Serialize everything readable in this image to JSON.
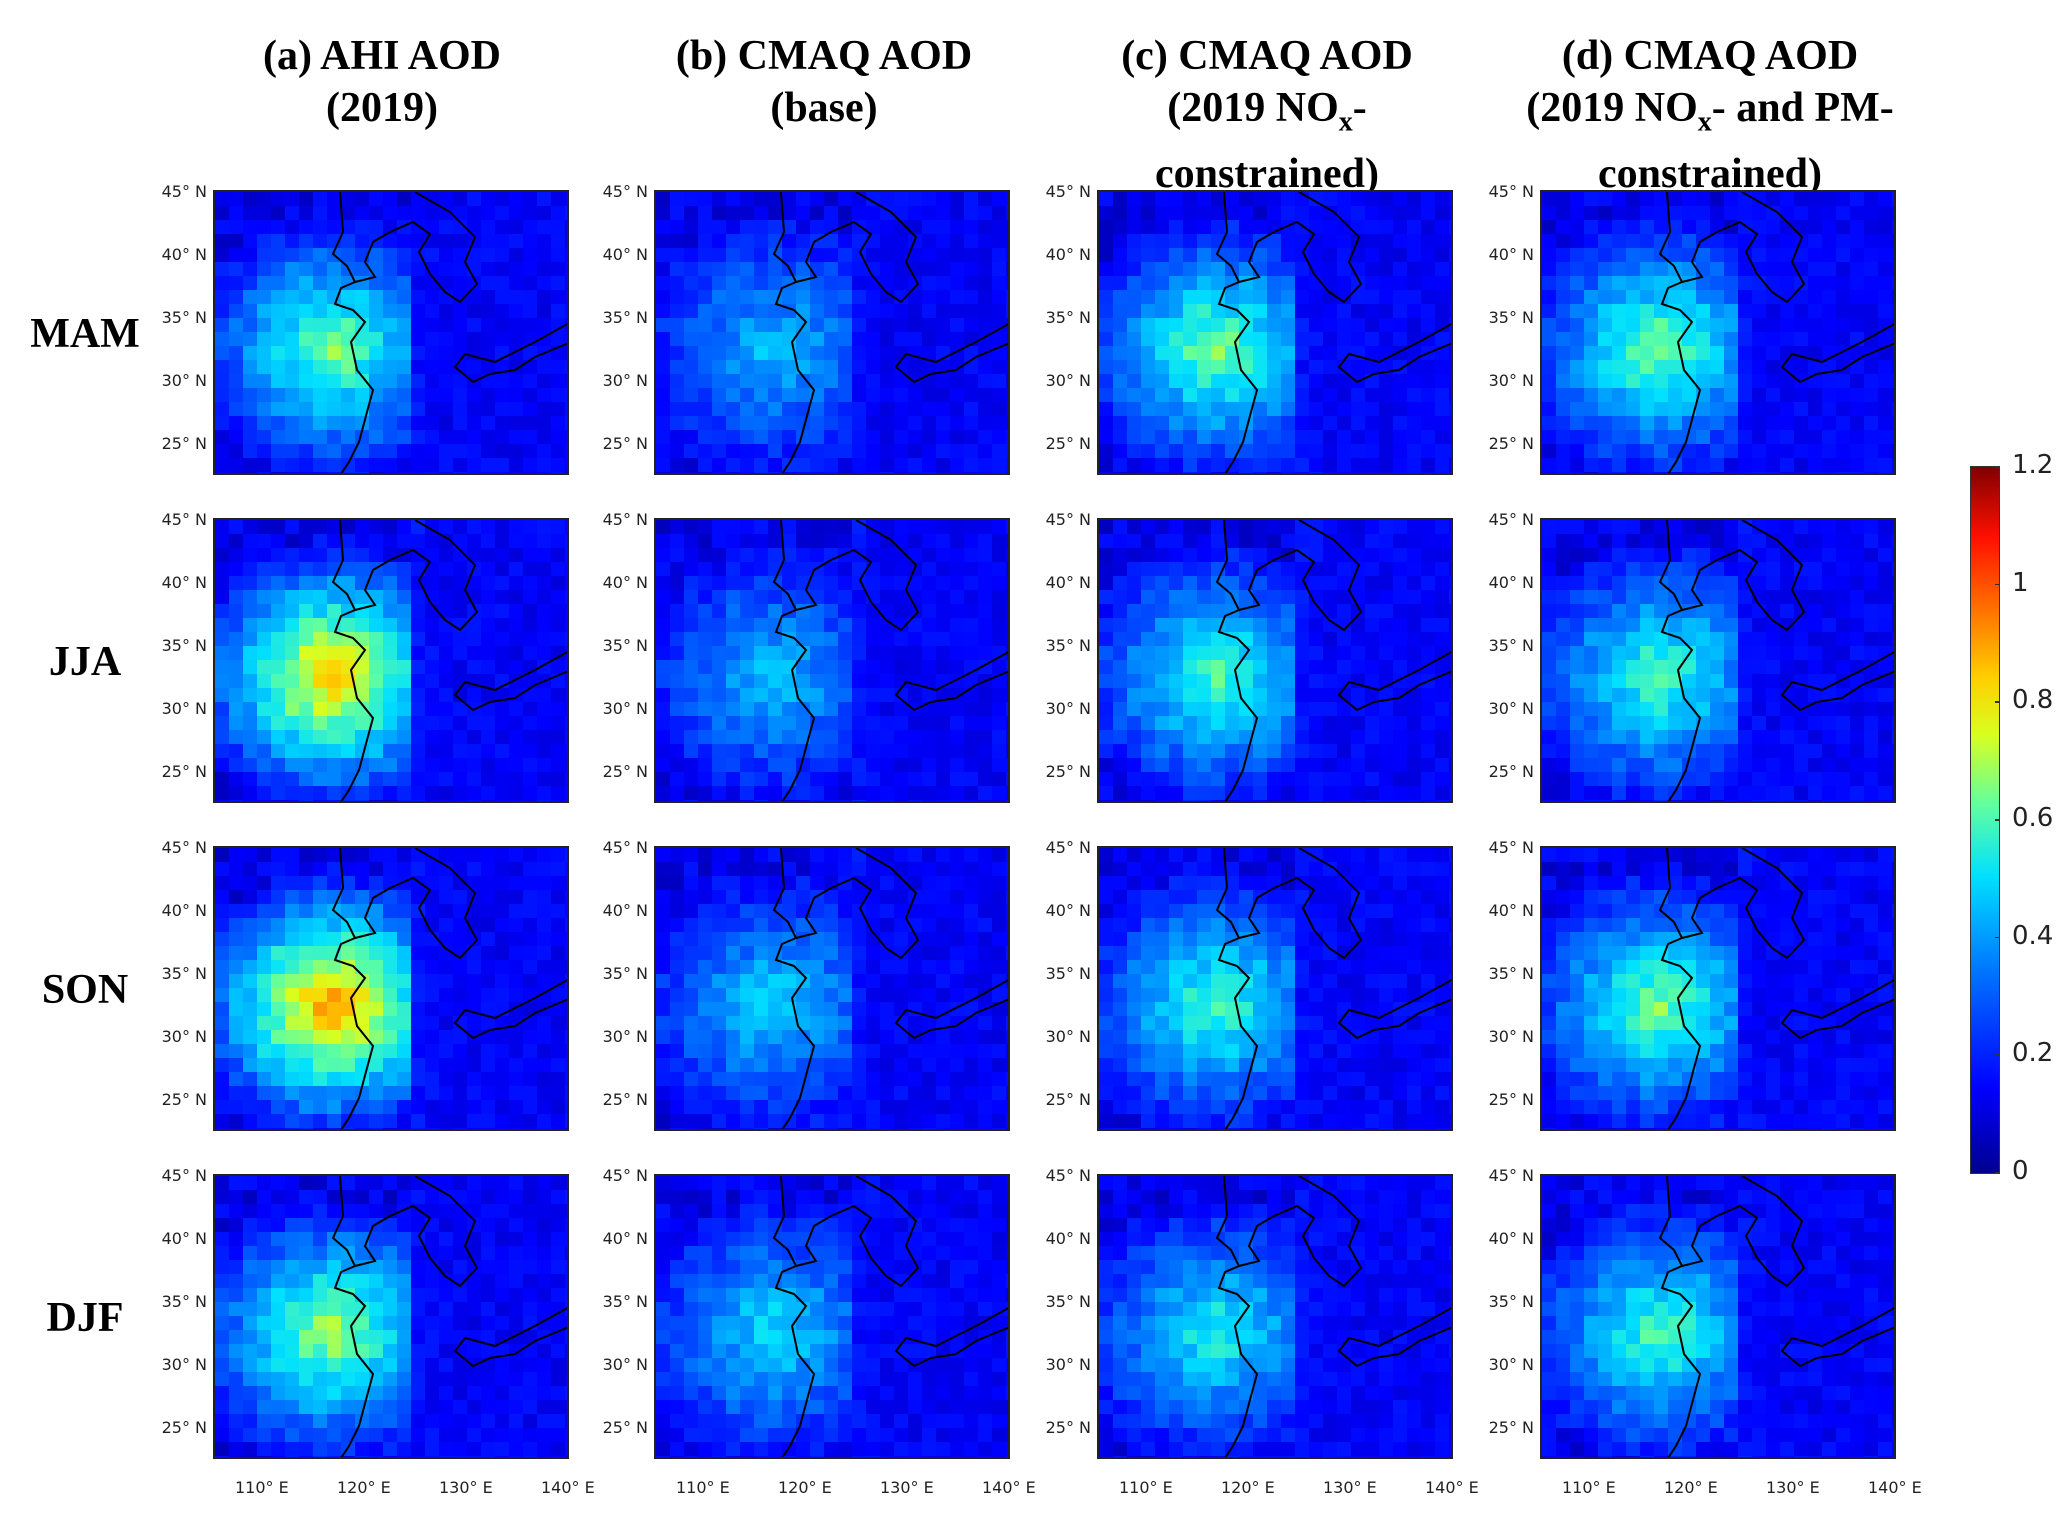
{
  "chart_data": {
    "type": "heatmap",
    "columns": [
      {
        "line1": "(a) AHI AOD",
        "line2": "(2019)",
        "line3": ""
      },
      {
        "line1": "(b) CMAQ AOD",
        "line2": "(base)",
        "line3": ""
      },
      {
        "line1": "(c) CMAQ AOD",
        "line2": "(2019 NO",
        "line2_sub": "x",
        "line2_post": "-",
        "line3": "constrained)"
      },
      {
        "line1": "(d) CMAQ AOD",
        "line2": "(2019 NO",
        "line2_sub": "x",
        "line2_post": "- and PM-",
        "line3": "constrained)"
      }
    ],
    "rows": [
      "MAM",
      "JJA",
      "SON",
      "DJF"
    ],
    "lat_ticks": [
      "45° N",
      "40° N",
      "35° N",
      "30° N",
      "25° N"
    ],
    "lon_ticks": [
      "110° E",
      "120° E",
      "130° E",
      "140° E"
    ],
    "lon_range": [
      105,
      140
    ],
    "lat_range": [
      23,
      45
    ],
    "colorbar": {
      "ticks": [
        "1.2",
        "1",
        "0.8",
        "0.6",
        "0.4",
        "0.2",
        "0"
      ],
      "range": [
        0,
        1.2
      ],
      "colormap": "jet"
    },
    "panel_levels": [
      [
        0.55,
        0.35,
        0.55,
        0.55
      ],
      [
        0.75,
        0.35,
        0.5,
        0.5
      ],
      [
        0.8,
        0.38,
        0.5,
        0.55
      ],
      [
        0.6,
        0.4,
        0.45,
        0.5
      ]
    ],
    "colors": {
      "background_ocean": "#1030c8",
      "high": "#d01000",
      "medium": "#f0d000",
      "low": "#30c0f0"
    }
  }
}
